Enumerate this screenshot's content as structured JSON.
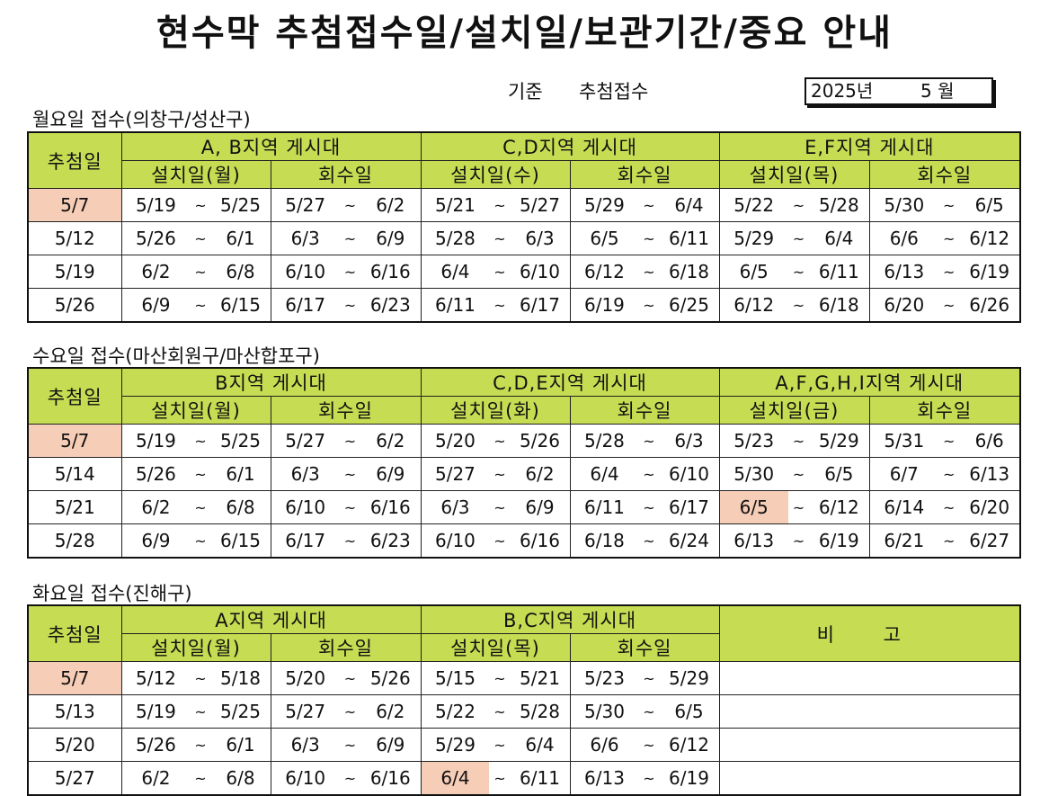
{
  "title": "현수막 추첨접수일/설치일/보관기간/중요 안내",
  "standard": {
    "label": "기준",
    "value": "추첨접수",
    "year": "2025년",
    "month": "5 월"
  },
  "monday": {
    "title": "월요일 접수(의창구/성산구)",
    "draw_header": "추첨일",
    "regions": [
      "A, B지역 게시대",
      "C,D지역 게시대",
      "E,F지역 게시대"
    ],
    "subheaders": [
      "설치일(월)",
      "회수일",
      "설치일(수)",
      "회수일",
      "설치일(목)",
      "회수일"
    ],
    "rows": [
      {
        "draw": "5/7",
        "draw_hl": true,
        "periods": [
          [
            "5/19",
            "5/25"
          ],
          [
            "5/27",
            "6/2"
          ],
          [
            "5/21",
            "5/27"
          ],
          [
            "5/29",
            "6/4"
          ],
          [
            "5/22",
            "5/28"
          ],
          [
            "5/30",
            "6/5"
          ]
        ]
      },
      {
        "draw": "5/12",
        "periods": [
          [
            "5/26",
            "6/1"
          ],
          [
            "6/3",
            "6/9"
          ],
          [
            "5/28",
            "6/3"
          ],
          [
            "6/5",
            "6/11"
          ],
          [
            "5/29",
            "6/4"
          ],
          [
            "6/6",
            "6/12"
          ]
        ]
      },
      {
        "draw": "5/19",
        "periods": [
          [
            "6/2",
            "6/8"
          ],
          [
            "6/10",
            "6/16"
          ],
          [
            "6/4",
            "6/10"
          ],
          [
            "6/12",
            "6/18"
          ],
          [
            "6/5",
            "6/11"
          ],
          [
            "6/13",
            "6/19"
          ]
        ]
      },
      {
        "draw": "5/26",
        "periods": [
          [
            "6/9",
            "6/15"
          ],
          [
            "6/17",
            "6/23"
          ],
          [
            "6/11",
            "6/17"
          ],
          [
            "6/19",
            "6/25"
          ],
          [
            "6/12",
            "6/18"
          ],
          [
            "6/20",
            "6/26"
          ]
        ]
      }
    ]
  },
  "wednesday": {
    "title": "수요일 접수(마산회원구/마산합포구)",
    "draw_header": "추첨일",
    "regions": [
      "B지역 게시대",
      "C,D,E지역 게시대",
      "A,F,G,H,I지역 게시대"
    ],
    "subheaders": [
      "설치일(월)",
      "회수일",
      "설치일(화)",
      "회수일",
      "설치일(금)",
      "회수일"
    ],
    "rows": [
      {
        "draw": "5/7",
        "draw_hl": true,
        "periods": [
          [
            "5/19",
            "5/25"
          ],
          [
            "5/27",
            "6/2"
          ],
          [
            "5/20",
            "5/26"
          ],
          [
            "5/28",
            "6/3"
          ],
          [
            "5/23",
            "5/29"
          ],
          [
            "5/31",
            "6/6"
          ]
        ]
      },
      {
        "draw": "5/14",
        "periods": [
          [
            "5/26",
            "6/1"
          ],
          [
            "6/3",
            "6/9"
          ],
          [
            "5/27",
            "6/2"
          ],
          [
            "6/4",
            "6/10"
          ],
          [
            "5/30",
            "6/5"
          ],
          [
            "6/7",
            "6/13"
          ]
        ]
      },
      {
        "draw": "5/21",
        "hl_cell": 4,
        "periods": [
          [
            "6/2",
            "6/8"
          ],
          [
            "6/10",
            "6/16"
          ],
          [
            "6/3",
            "6/9"
          ],
          [
            "6/11",
            "6/17"
          ],
          [
            "6/5",
            "6/12"
          ],
          [
            "6/14",
            "6/20"
          ]
        ]
      },
      {
        "draw": "5/28",
        "periods": [
          [
            "6/9",
            "6/15"
          ],
          [
            "6/17",
            "6/23"
          ],
          [
            "6/10",
            "6/16"
          ],
          [
            "6/18",
            "6/24"
          ],
          [
            "6/13",
            "6/19"
          ],
          [
            "6/21",
            "6/27"
          ]
        ]
      }
    ]
  },
  "tuesday": {
    "title": "화요일 접수(진해구)",
    "draw_header": "추첨일",
    "regions": [
      "A지역 게시대",
      "B,C지역 게시대"
    ],
    "note_header": "비 고",
    "subheaders": [
      "설치일(월)",
      "회수일",
      "설치일(목)",
      "회수일"
    ],
    "rows": [
      {
        "draw": "5/7",
        "draw_hl": true,
        "periods": [
          [
            "5/12",
            "5/18"
          ],
          [
            "5/20",
            "5/26"
          ],
          [
            "5/15",
            "5/21"
          ],
          [
            "5/23",
            "5/29"
          ]
        ]
      },
      {
        "draw": "5/13",
        "periods": [
          [
            "5/19",
            "5/25"
          ],
          [
            "5/27",
            "6/2"
          ],
          [
            "5/22",
            "5/28"
          ],
          [
            "5/30",
            "6/5"
          ]
        ]
      },
      {
        "draw": "5/20",
        "periods": [
          [
            "5/26",
            "6/1"
          ],
          [
            "6/3",
            "6/9"
          ],
          [
            "5/29",
            "6/4"
          ],
          [
            "6/6",
            "6/12"
          ]
        ]
      },
      {
        "draw": "5/27",
        "hl_cell": 2,
        "periods": [
          [
            "6/2",
            "6/8"
          ],
          [
            "6/10",
            "6/16"
          ],
          [
            "6/4",
            "6/11"
          ],
          [
            "6/13",
            "6/19"
          ]
        ]
      }
    ]
  }
}
